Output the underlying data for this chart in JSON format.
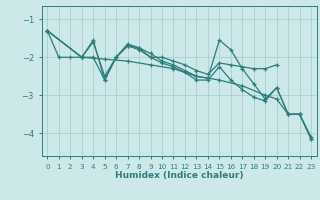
{
  "xlabel": "Humidex (Indice chaleur)",
  "bg_color": "#cce8e8",
  "grid_color": "#aacfcf",
  "line_color": "#2e7d7d",
  "xlim": [
    -0.5,
    23.5
  ],
  "ylim": [
    -4.6,
    -0.65
  ],
  "yticks": [
    -4,
    -3,
    -2,
    -1
  ],
  "xticks": [
    0,
    1,
    2,
    3,
    4,
    5,
    6,
    7,
    8,
    9,
    10,
    11,
    12,
    13,
    14,
    15,
    16,
    17,
    18,
    19,
    20,
    21,
    22,
    23
  ],
  "series": [
    {
      "x": [
        0,
        1,
        2,
        3,
        4,
        5,
        6,
        7,
        8,
        9,
        10,
        11,
        12,
        13,
        14,
        15,
        16,
        17,
        18,
        19,
        20
      ],
      "y": [
        -1.3,
        -2.0,
        -2.0,
        -2.0,
        -1.6,
        -2.5,
        -2.0,
        -1.7,
        -1.75,
        -2.0,
        -2.0,
        -2.1,
        -2.2,
        -2.35,
        -2.45,
        -2.15,
        -2.2,
        -2.25,
        -2.3,
        -2.3,
        -2.2
      ]
    },
    {
      "x": [
        0,
        3,
        4,
        5,
        6,
        7,
        8,
        9,
        10,
        11,
        12,
        13,
        14,
        15,
        16,
        17,
        18,
        19,
        20,
        21,
        22,
        23
      ],
      "y": [
        -1.3,
        -2.0,
        -1.55,
        -2.6,
        -2.0,
        -1.65,
        -1.75,
        -1.9,
        -2.1,
        -2.2,
        -2.35,
        -2.5,
        -2.55,
        -1.55,
        -1.8,
        -2.3,
        -2.7,
        -3.1,
        -2.8,
        -3.5,
        -3.5,
        -4.1
      ]
    },
    {
      "x": [
        0,
        3,
        5,
        7,
        9,
        11,
        13,
        15,
        17,
        19,
        20,
        21,
        22,
        23
      ],
      "y": [
        -1.3,
        -2.0,
        -2.05,
        -2.1,
        -2.2,
        -2.3,
        -2.5,
        -2.6,
        -2.75,
        -3.0,
        -3.1,
        -3.5,
        -3.5,
        -4.15
      ]
    },
    {
      "x": [
        0,
        3,
        4,
        5,
        6,
        7,
        8,
        9,
        10,
        11,
        12,
        13,
        14,
        15,
        16,
        17,
        18,
        19,
        20,
        21,
        22,
        23
      ],
      "y": [
        -1.3,
        -2.0,
        -2.0,
        -2.6,
        -2.0,
        -1.7,
        -1.8,
        -2.0,
        -2.15,
        -2.25,
        -2.4,
        -2.6,
        -2.6,
        -2.25,
        -2.6,
        -2.85,
        -3.05,
        -3.15,
        -2.8,
        -3.5,
        -3.5,
        -4.15
      ]
    }
  ]
}
